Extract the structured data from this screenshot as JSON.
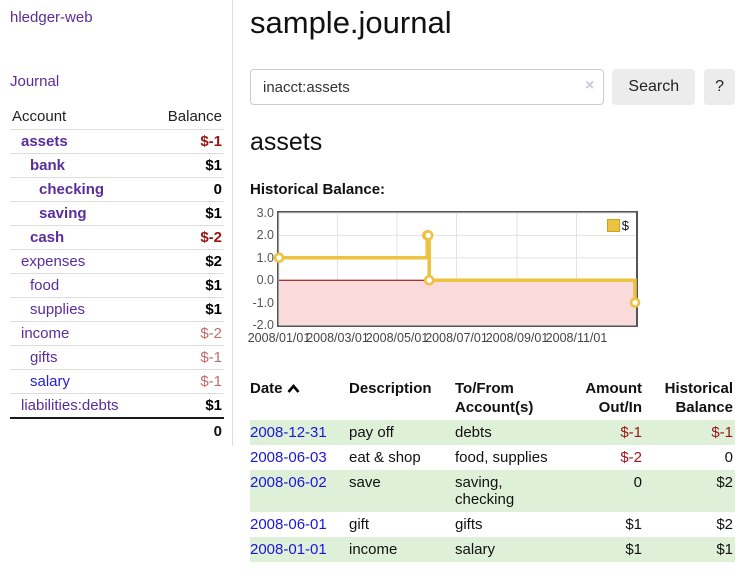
{
  "colors": {
    "link_purple": "#5b2d9b",
    "link_blue": "#1b15dd",
    "negative_red": "#9b1414",
    "negative_muted": "#c06b6b",
    "row_stripe_green": "#dff0d8",
    "chart_gold": "#edc240",
    "chart_negative_region": "#fadada",
    "chart_zero_line": "#8b0000",
    "button_gray": "#ececec"
  },
  "sidebar": {
    "brand": "hledger-web",
    "nav_journal": "Journal",
    "accounts_table": {
      "headers": {
        "account": "Account",
        "balance": "Balance"
      },
      "rows": [
        {
          "name": "assets",
          "depth": 0,
          "bold": true,
          "balance": "$-1",
          "balance_style": "negative"
        },
        {
          "name": "bank",
          "depth": 1,
          "bold": true,
          "balance": "$1",
          "balance_style": "normal"
        },
        {
          "name": "checking",
          "depth": 2,
          "bold": true,
          "balance": "0",
          "balance_style": "normal"
        },
        {
          "name": "saving",
          "depth": 2,
          "bold": true,
          "balance": "$1",
          "balance_style": "normal"
        },
        {
          "name": "cash",
          "depth": 1,
          "bold": true,
          "balance": "$-2",
          "balance_style": "negative"
        },
        {
          "name": "expenses",
          "depth": 0,
          "bold": false,
          "balance": "$2",
          "balance_style": "normal"
        },
        {
          "name": "food",
          "depth": 1,
          "bold": false,
          "balance": "$1",
          "balance_style": "normal"
        },
        {
          "name": "supplies",
          "depth": 1,
          "bold": false,
          "balance": "$1",
          "balance_style": "normal"
        },
        {
          "name": "income",
          "depth": 0,
          "bold": false,
          "balance": "$-2",
          "balance_style": "negative-muted"
        },
        {
          "name": "gifts",
          "depth": 1,
          "bold": false,
          "balance": "$-1",
          "balance_style": "negative-muted"
        },
        {
          "name": "salary",
          "depth": 1,
          "bold": false,
          "link_color": "blue",
          "balance": "$-1",
          "balance_style": "negative-muted"
        },
        {
          "name": "liabilities:debts",
          "depth": 0,
          "bold": false,
          "balance": "$1",
          "balance_style": "normal"
        }
      ],
      "total": "0"
    }
  },
  "main": {
    "title": "sample.journal",
    "search": {
      "value": "inacct:assets",
      "clear_icon": "×",
      "search_button": "Search",
      "help_button": "?"
    },
    "account_heading": "assets",
    "chart_label": "Historical Balance:",
    "register": {
      "headers": {
        "date": "Date",
        "description": "Description",
        "accounts": "To/From Account(s)",
        "amount": "Amount Out/In",
        "balance": "Historical Balance"
      },
      "rows": [
        {
          "date": "2008-12-31",
          "description": "pay off",
          "accounts": "debts",
          "amount": "$-1",
          "amount_negative": true,
          "balance": "$-1",
          "balance_negative": true
        },
        {
          "date": "2008-06-03",
          "description": "eat & shop",
          "accounts": "food, supplies",
          "amount": "$-2",
          "amount_negative": true,
          "balance": "0",
          "balance_negative": false
        },
        {
          "date": "2008-06-02",
          "description": "save",
          "accounts": "saving, checking",
          "amount": "0",
          "amount_negative": false,
          "balance": "$2",
          "balance_negative": false
        },
        {
          "date": "2008-06-01",
          "description": "gift",
          "accounts": "gifts",
          "amount": "$1",
          "amount_negative": false,
          "balance": "$2",
          "balance_negative": false
        },
        {
          "date": "2008-01-01",
          "description": "income",
          "accounts": "salary",
          "amount": "$1",
          "amount_negative": false,
          "balance": "$1",
          "balance_negative": false
        }
      ]
    }
  },
  "chart_data": {
    "type": "line",
    "title": "Historical Balance",
    "step": true,
    "series": [
      {
        "name": "$",
        "color": "#edc240",
        "points": [
          [
            "2008-01-01",
            1
          ],
          [
            "2008-06-01",
            2
          ],
          [
            "2008-06-02",
            2
          ],
          [
            "2008-06-03",
            0
          ],
          [
            "2008-12-31",
            -1
          ]
        ]
      }
    ],
    "x_range": [
      "2008-01-01",
      "2009-01-01"
    ],
    "ylim": [
      -2,
      3
    ],
    "y_ticks": [
      3.0,
      2.0,
      1.0,
      0.0,
      -1.0,
      -2.0
    ],
    "x_ticks": [
      {
        "label": "2008/01/01",
        "date": "2008-01-01"
      },
      {
        "label": "2008/03/01",
        "date": "2008-03-01"
      },
      {
        "label": "2008/05/01",
        "date": "2008-05-01"
      },
      {
        "label": "2008/07/01",
        "date": "2008-07-01"
      },
      {
        "label": "2008/09/01",
        "date": "2008-09-01"
      },
      {
        "label": "2008/11/01",
        "date": "2008-11-01"
      }
    ],
    "grid": true,
    "legend": {
      "label": "$",
      "position": "top-right"
    },
    "negative_region_color": "#fadada",
    "zero_line_color": "#8b0000"
  }
}
